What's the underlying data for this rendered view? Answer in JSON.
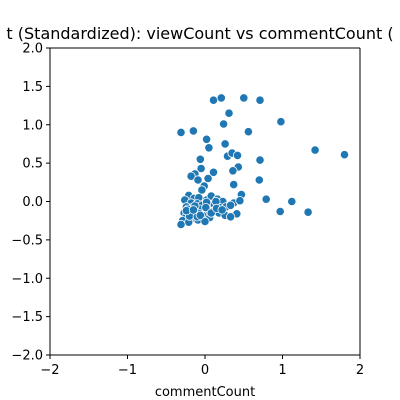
{
  "chart_data": {
    "type": "scatter",
    "title": "t (Standardized): viewCount vs commentCount (",
    "xlabel": "commentCount",
    "ylabel": "",
    "xlim": [
      -2,
      2
    ],
    "ylim": [
      -2,
      2
    ],
    "x_ticks": [
      -2,
      -1,
      0,
      1,
      2
    ],
    "y_ticks": [
      -2.0,
      -1.5,
      -1.0,
      -0.5,
      0.0,
      0.5,
      1.0,
      1.5,
      2.0
    ],
    "x_tick_labels": [
      "−2",
      "−1",
      "0",
      "1",
      "2"
    ],
    "y_tick_labels": [
      "−2.0",
      "−1.5",
      "−1.0",
      "−0.5",
      "0.0",
      "0.5",
      "1.0",
      "1.5",
      "2.0"
    ],
    "grid": false,
    "marker_color": "#1f77b4",
    "marker_edge_color": "#ffffff",
    "series": [
      {
        "points": [
          [
            0.11,
            1.32
          ],
          [
            0.21,
            1.35
          ],
          [
            0.5,
            1.35
          ],
          [
            0.71,
            1.32
          ],
          [
            0.31,
            1.15
          ],
          [
            0.98,
            1.04
          ],
          [
            0.24,
            1.01
          ],
          [
            -0.31,
            0.9
          ],
          [
            -0.15,
            0.92
          ],
          [
            0.56,
            0.91
          ],
          [
            0.02,
            0.81
          ],
          [
            0.26,
            0.75
          ],
          [
            0.05,
            0.7
          ],
          [
            1.42,
            0.67
          ],
          [
            1.8,
            0.61
          ],
          [
            0.29,
            0.59
          ],
          [
            0.35,
            0.63
          ],
          [
            0.42,
            0.6
          ],
          [
            0.71,
            0.54
          ],
          [
            -0.06,
            0.55
          ],
          [
            0.43,
            0.45
          ],
          [
            -0.05,
            0.43
          ],
          [
            0.36,
            0.4
          ],
          [
            0.11,
            0.38
          ],
          [
            -0.13,
            0.36
          ],
          [
            -0.18,
            0.33
          ],
          [
            0.04,
            0.3
          ],
          [
            -0.09,
            0.28
          ],
          [
            0.7,
            0.28
          ],
          [
            -0.01,
            0.2
          ],
          [
            0.37,
            0.22
          ],
          [
            -0.04,
            0.15
          ],
          [
            0.79,
            0.03
          ],
          [
            1.12,
            0.0
          ],
          [
            0.47,
            0.09
          ],
          [
            -0.21,
            0.08
          ],
          [
            -0.14,
            0.04
          ],
          [
            -0.08,
            0.05
          ],
          [
            0.02,
            0.02
          ],
          [
            0.08,
            0.07
          ],
          [
            0.16,
            0.03
          ],
          [
            0.23,
            0.0
          ],
          [
            0.37,
            -0.02
          ],
          [
            0.45,
            0.01
          ],
          [
            -0.26,
            0.02
          ],
          [
            -0.18,
            -0.02
          ],
          [
            -0.1,
            -0.03
          ],
          [
            -0.04,
            -0.05
          ],
          [
            0.05,
            -0.06
          ],
          [
            0.12,
            -0.04
          ],
          [
            0.19,
            -0.08
          ],
          [
            0.27,
            -0.07
          ],
          [
            0.33,
            -0.05
          ],
          [
            0.41,
            -0.16
          ],
          [
            -0.24,
            -0.07
          ],
          [
            -0.16,
            -0.08
          ],
          [
            -0.06,
            -0.1
          ],
          [
            0.03,
            -0.12
          ],
          [
            0.1,
            -0.13
          ],
          [
            0.18,
            -0.15
          ],
          [
            0.26,
            -0.18
          ],
          [
            0.33,
            -0.2
          ],
          [
            -0.27,
            -0.15
          ],
          [
            -0.2,
            -0.14
          ],
          [
            -0.12,
            -0.16
          ],
          [
            -0.02,
            -0.19
          ],
          [
            0.06,
            -0.21
          ],
          [
            -0.25,
            -0.21
          ],
          [
            -0.17,
            -0.22
          ],
          [
            -0.09,
            -0.24
          ],
          [
            0.0,
            -0.26
          ],
          [
            -0.29,
            -0.25
          ],
          [
            -0.21,
            -0.27
          ],
          [
            -0.31,
            -0.3
          ],
          [
            -0.22,
            -0.1
          ],
          [
            -0.13,
            -0.06
          ],
          [
            0.02,
            -0.01
          ],
          [
            -0.07,
            -0.16
          ],
          [
            0.14,
            0.0
          ],
          [
            0.97,
            -0.13
          ],
          [
            1.33,
            -0.14
          ],
          [
            -0.2,
            -0.19
          ],
          [
            -0.1,
            -0.2
          ],
          [
            -0.24,
            -0.12
          ],
          [
            -0.15,
            -0.11
          ],
          [
            -0.06,
            -0.18
          ],
          [
            0.01,
            -0.08
          ],
          [
            0.08,
            -0.15
          ],
          [
            0.15,
            -0.09
          ],
          [
            0.22,
            -0.11
          ]
        ]
      }
    ]
  }
}
